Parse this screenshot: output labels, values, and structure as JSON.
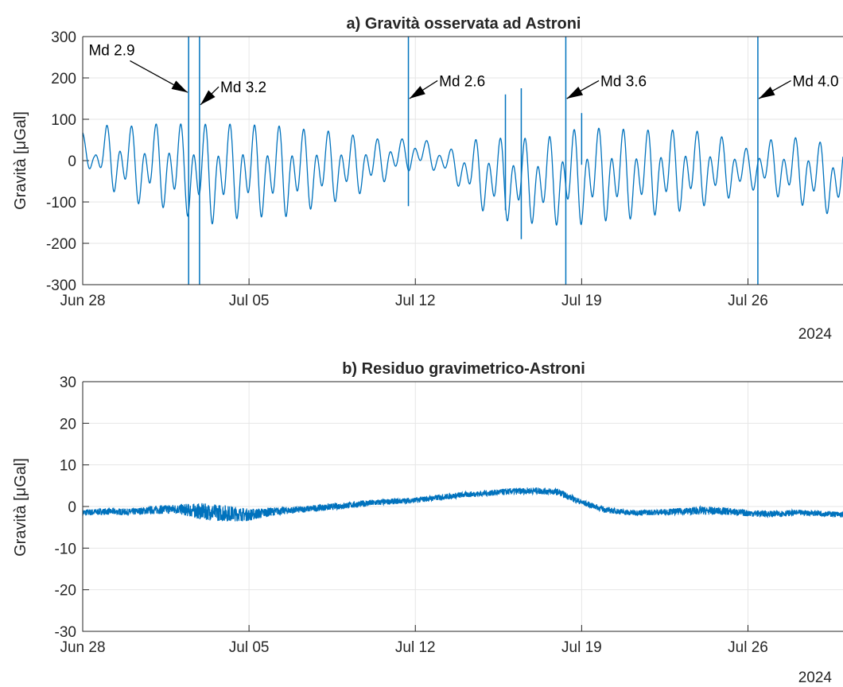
{
  "chart_data": [
    {
      "type": "line",
      "title": "a) Gravità osservata ad Astroni",
      "ylabel": "Gravità [μGal]",
      "xlabel": "",
      "x_range": [
        "2024-06-28",
        "2024-07-30"
      ],
      "x_ticks": [
        "Jun 28",
        "Jul 05",
        "Jul 12",
        "Jul 19",
        "Jul 26"
      ],
      "x_tick_dates": [
        "2024-06-28",
        "2024-07-05",
        "2024-07-12",
        "2024-07-19",
        "2024-07-26"
      ],
      "year_label": "2024",
      "ylim": [
        -300,
        300
      ],
      "y_ticks": [
        "300",
        "200",
        "100",
        "0",
        "-100",
        "-200",
        "-300"
      ],
      "grid": true,
      "series_color": "#0072bd",
      "series": [
        {
          "values_description_free": true,
          "x": [
            "2024-06-28 00:00",
            "2024-06-28 12:00",
            "2024-06-29 00:00",
            "2024-06-29 12:00",
            "2024-06-30 00:00",
            "2024-06-30 12:00",
            "2024-07-01 00:00",
            "2024-07-01 12:00",
            "2024-07-02 00:00",
            "2024-07-02 12:00",
            "2024-07-03 00:00",
            "2024-07-03 12:00",
            "2024-07-04 00:00",
            "2024-07-04 12:00",
            "2024-07-05 00:00",
            "2024-07-05 12:00",
            "2024-07-06 00:00",
            "2024-07-06 12:00",
            "2024-07-07 00:00",
            "2024-07-07 12:00",
            "2024-07-08 00:00",
            "2024-07-08 12:00",
            "2024-07-09 00:00",
            "2024-07-09 12:00",
            "2024-07-10 00:00",
            "2024-07-10 12:00",
            "2024-07-11 00:00",
            "2024-07-11 12:00",
            "2024-07-12 00:00",
            "2024-07-12 12:00",
            "2024-07-13 00:00",
            "2024-07-13 12:00",
            "2024-07-14 00:00",
            "2024-07-14 12:00",
            "2024-07-15 00:00",
            "2024-07-15 12:00",
            "2024-07-16 00:00",
            "2024-07-16 12:00",
            "2024-07-17 00:00",
            "2024-07-17 12:00",
            "2024-07-18 00:00",
            "2024-07-18 12:00",
            "2024-07-19 00:00",
            "2024-07-19 12:00",
            "2024-07-20 00:00",
            "2024-07-20 12:00",
            "2024-07-21 00:00",
            "2024-07-21 12:00",
            "2024-07-22 00:00",
            "2024-07-22 12:00",
            "2024-07-23 00:00",
            "2024-07-23 12:00",
            "2024-07-24 00:00",
            "2024-07-24 12:00",
            "2024-07-25 00:00",
            "2024-07-25 12:00",
            "2024-07-26 00:00",
            "2024-07-26 12:00",
            "2024-07-27 00:00",
            "2024-07-27 12:00",
            "2024-07-28 00:00",
            "2024-07-28 12:00",
            "2024-07-29 00:00",
            "2024-07-29 12:00",
            "2024-07-30 00:00"
          ],
          "max": [
            70,
            35,
            90,
            80,
            90,
            80,
            95,
            90,
            95,
            95,
            95,
            95,
            95,
            95,
            95,
            90,
            90,
            90,
            85,
            80,
            80,
            75,
            70,
            65,
            60,
            55,
            55,
            55,
            55,
            50,
            35,
            30,
            30,
            55,
            60,
            60,
            60,
            60,
            60,
            60,
            75,
            80,
            85,
            85,
            85,
            85,
            80,
            80,
            80,
            80,
            80,
            80,
            75,
            70,
            60,
            50,
            30,
            45,
            55,
            55,
            60,
            60,
            50,
            45,
            35
          ],
          "min": [
            -10,
            -40,
            -70,
            -105,
            -110,
            -130,
            -120,
            -140,
            -150,
            -160,
            -170,
            -180,
            -165,
            -165,
            -160,
            -160,
            -160,
            -160,
            -150,
            -140,
            -130,
            -120,
            -110,
            -100,
            -85,
            -70,
            -50,
            -40,
            -25,
            -25,
            -35,
            -50,
            -85,
            -120,
            -150,
            -160,
            -170,
            -170,
            -175,
            -180,
            -180,
            -175,
            -180,
            -170,
            -170,
            -170,
            -165,
            -160,
            -155,
            -150,
            -145,
            -140,
            -130,
            -125,
            -110,
            -100,
            -85,
            -80,
            -95,
            -110,
            -120,
            -130,
            -140,
            -150,
            -150
          ]
        }
      ],
      "spikes": [
        {
          "x": "2024-07-02 11:00",
          "low": -300,
          "high": 300
        },
        {
          "x": "2024-07-02 22:00",
          "low": -300,
          "high": 300
        },
        {
          "x": "2024-07-11 17:00",
          "low": -110,
          "high": 300
        },
        {
          "x": "2024-07-15 19:00",
          "low": -120,
          "high": 160
        },
        {
          "x": "2024-07-16 11:00",
          "low": -190,
          "high": 175
        },
        {
          "x": "2024-07-18 08:00",
          "low": -300,
          "high": 300
        },
        {
          "x": "2024-07-19 00:00",
          "low": -10,
          "high": 115
        },
        {
          "x": "2024-07-26 10:00",
          "low": -300,
          "high": 300
        }
      ],
      "annotations": [
        {
          "text": "Md 2.9",
          "x": "2024-06-28 06:00",
          "y": 255,
          "arrow_to_x": "2024-07-02 10:00",
          "arrow_to_y": 165,
          "anchor": "start"
        },
        {
          "text": "Md 3.2",
          "x": "2024-07-03 19:00",
          "y": 165,
          "arrow_to_x": "2024-07-02 23:00",
          "arrow_to_y": 135,
          "anchor": "start"
        },
        {
          "text": "Md 2.6",
          "x": "2024-07-13 00:00",
          "y": 180,
          "arrow_to_x": "2024-07-11 18:00",
          "arrow_to_y": 150,
          "anchor": "start"
        },
        {
          "text": "Md 3.6",
          "x": "2024-07-19 19:00",
          "y": 180,
          "arrow_to_x": "2024-07-18 09:00",
          "arrow_to_y": 150,
          "anchor": "start"
        },
        {
          "text": "Md 4.0",
          "x": "2024-07-27 21:00",
          "y": 180,
          "arrow_to_x": "2024-07-26 11:00",
          "arrow_to_y": 150,
          "anchor": "start"
        }
      ]
    },
    {
      "type": "line",
      "title": "b) Residuo gravimetrico-Astroni",
      "ylabel": "Gravità [μGal]",
      "xlabel": "",
      "x_range": [
        "2024-06-28",
        "2024-07-30"
      ],
      "x_ticks": [
        "Jun 28",
        "Jul 05",
        "Jul 12",
        "Jul 19",
        "Jul 26"
      ],
      "x_tick_dates": [
        "2024-06-28",
        "2024-07-05",
        "2024-07-12",
        "2024-07-19",
        "2024-07-26"
      ],
      "year_label": "2024",
      "ylim": [
        -30,
        30
      ],
      "y_ticks": [
        "30",
        "20",
        "10",
        "0",
        "-10",
        "-20",
        "-30"
      ],
      "grid": true,
      "series_color": "#0072bd",
      "series": [
        {
          "x": [
            "2024-06-28",
            "2024-06-29",
            "2024-06-30",
            "2024-07-01",
            "2024-07-02",
            "2024-07-03",
            "2024-07-04",
            "2024-07-05",
            "2024-07-06",
            "2024-07-07",
            "2024-07-08",
            "2024-07-09",
            "2024-07-10",
            "2024-07-11",
            "2024-07-12",
            "2024-07-13",
            "2024-07-14",
            "2024-07-15",
            "2024-07-16",
            "2024-07-17",
            "2024-07-18",
            "2024-07-19",
            "2024-07-20",
            "2024-07-21",
            "2024-07-22",
            "2024-07-23",
            "2024-07-24",
            "2024-07-25",
            "2024-07-26",
            "2024-07-27",
            "2024-07-28",
            "2024-07-29",
            "2024-07-30"
          ],
          "values": [
            -1.5,
            -1.2,
            -1.3,
            -0.8,
            -0.6,
            -1.2,
            -1.6,
            -2.0,
            -1.2,
            -0.8,
            -0.3,
            0.2,
            0.8,
            1.2,
            1.5,
            2.2,
            2.8,
            3.2,
            3.6,
            3.8,
            3.5,
            1.0,
            -0.8,
            -1.5,
            -1.4,
            -1.2,
            -1.0,
            -1.1,
            -1.6,
            -1.8,
            -1.5,
            -1.6,
            -2.0
          ],
          "noise": [
            0.8,
            0.8,
            0.8,
            1.0,
            1.2,
            2.0,
            2.0,
            1.5,
            1.0,
            0.8,
            0.8,
            0.8,
            0.8,
            0.7,
            0.7,
            0.7,
            0.7,
            0.7,
            0.8,
            0.8,
            0.8,
            0.7,
            0.7,
            0.7,
            0.7,
            0.8,
            1.0,
            0.9,
            0.8,
            0.8,
            0.7,
            0.7,
            0.7
          ]
        }
      ]
    }
  ]
}
